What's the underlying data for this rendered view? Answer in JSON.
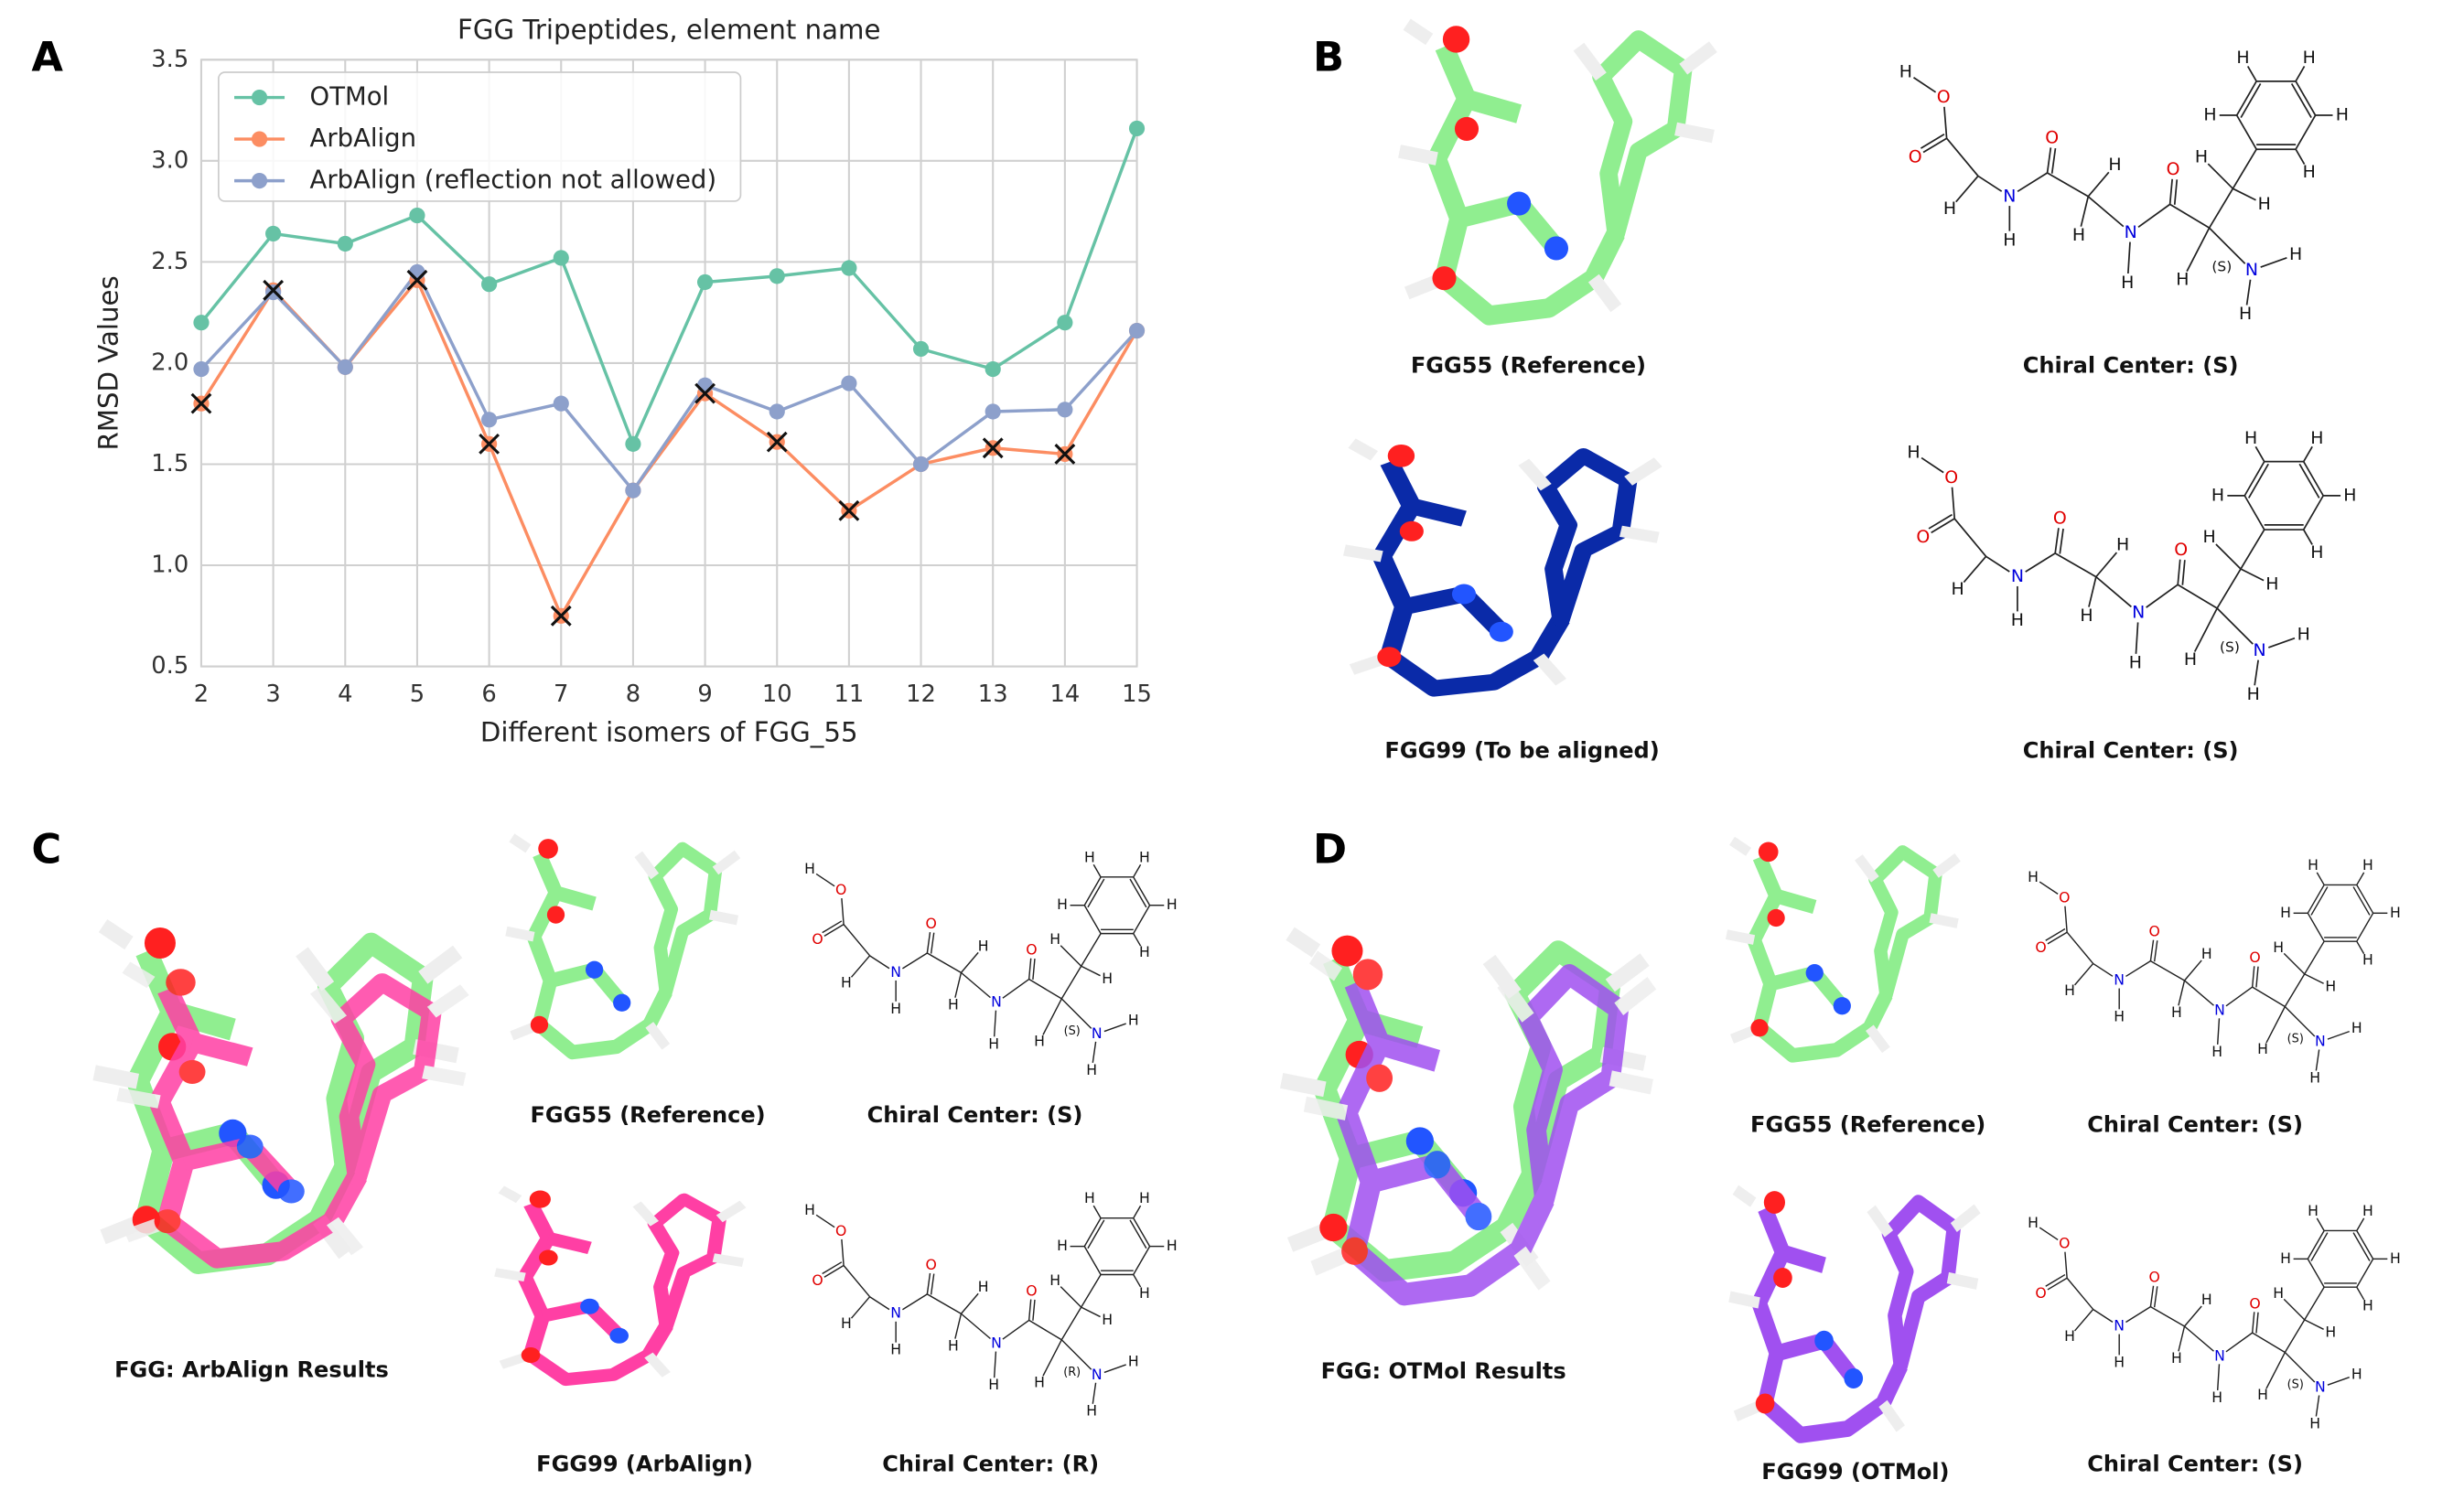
{
  "panel_labels": [
    "A",
    "B",
    "C",
    "D"
  ],
  "chart_data": {
    "type": "line",
    "title": "FGG Tripeptides, element name",
    "x_label": "Different isomers of FGG_55",
    "y_label": "RMSD Values",
    "x": [
      2,
      3,
      4,
      5,
      6,
      7,
      8,
      9,
      10,
      11,
      12,
      13,
      14,
      15
    ],
    "series": [
      {
        "name": "OTMol",
        "color": "#66c2a5",
        "values": [
          2.2,
          2.64,
          2.59,
          2.73,
          2.39,
          2.52,
          1.6,
          2.4,
          2.43,
          2.47,
          2.07,
          1.97,
          2.2,
          3.16
        ]
      },
      {
        "name": "ArbAlign",
        "color": "#fc8d62",
        "values": [
          1.8,
          2.36,
          1.98,
          2.41,
          1.6,
          0.75,
          1.37,
          1.85,
          1.61,
          1.27,
          1.5,
          1.58,
          1.55,
          2.16
        ]
      },
      {
        "name": "ArbAlign (reflection not allowed)",
        "color": "#8da0cb",
        "values": [
          1.97,
          2.35,
          1.98,
          2.45,
          1.72,
          1.8,
          1.37,
          1.89,
          1.76,
          1.9,
          1.5,
          1.76,
          1.77,
          2.16
        ]
      }
    ],
    "cross_x": [
      2,
      3,
      5,
      6,
      7,
      9,
      10,
      11,
      13,
      14
    ],
    "xlim": [
      2,
      15
    ],
    "xticks": [
      2,
      3,
      4,
      5,
      6,
      7,
      8,
      9,
      10,
      11,
      12,
      13,
      14,
      15
    ],
    "ylim": [
      0.5,
      3.5
    ],
    "yticks": [
      0.5,
      {
        "value": 1,
        "label": "1.0"
      },
      1.5,
      {
        "value": 2,
        "label": "2.0"
      },
      2.5,
      {
        "value": 3,
        "label": "3.0"
      },
      3.5
    ],
    "grid": true,
    "legend": "upper left"
  },
  "formula_atoms": [
    "H",
    "O",
    "O",
    "H",
    "N",
    "H",
    "O",
    "H",
    "H",
    "N",
    "H",
    "O",
    "H",
    "H",
    "H",
    "N",
    "H",
    "H",
    "H",
    "H",
    "H",
    "H",
    "H"
  ],
  "panel_b": {
    "items": [
      {
        "caption": "FGG55 (Reference)",
        "structure_caption": "Chiral Center: (S)",
        "chirality": "(S)"
      },
      {
        "caption": "FGG99 (To be aligned)",
        "structure_caption": "Chiral Center: (S)",
        "chirality": "(S)"
      }
    ]
  },
  "panel_c": {
    "overlay_caption": "FGG: ArbAlign Results",
    "items": [
      {
        "caption": "FGG55 (Reference)",
        "structure_caption": "Chiral Center: (S)",
        "chirality": "(S)"
      },
      {
        "caption": "FGG99 (ArbAlign)",
        "structure_caption": "Chiral Center: (R)",
        "chirality": "(R)"
      }
    ]
  },
  "panel_d": {
    "overlay_caption": "FGG: OTMol Results",
    "items": [
      {
        "caption": "FGG55 (Reference)",
        "structure_caption": "Chiral Center: (S)",
        "chirality": "(S)"
      },
      {
        "caption": "FGG99 (OTMol)",
        "structure_caption": "Chiral Center: (S)",
        "chirality": "(S)"
      }
    ]
  }
}
